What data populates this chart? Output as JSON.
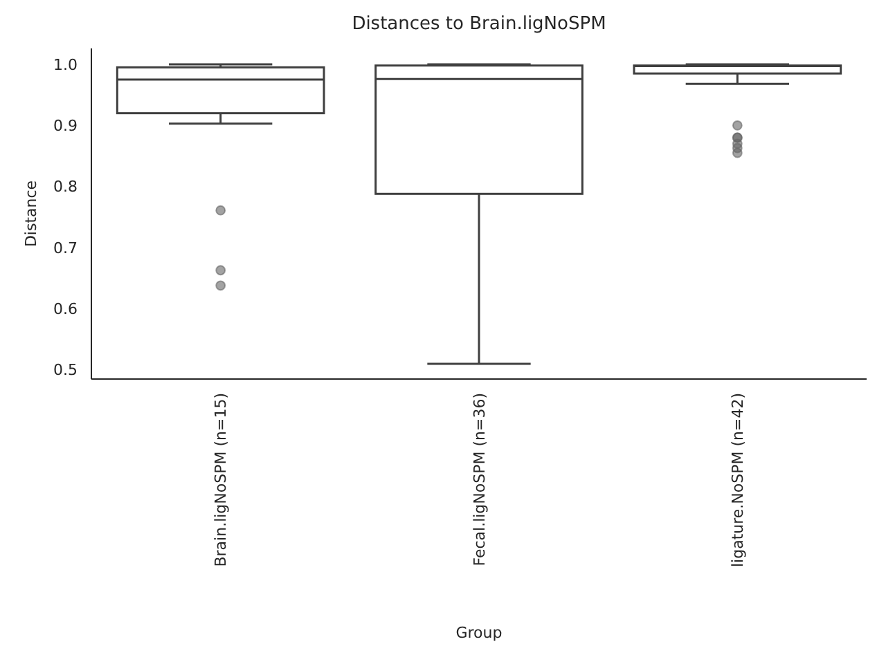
{
  "chart_data": {
    "type": "box",
    "title": "Distances to Brain.ligNoSPM",
    "xlabel": "Group",
    "ylabel": "Distance",
    "categories": [
      "Brain.ligNoSPM (n=15)",
      "Fecal.ligNoSPM (n=36)",
      "ligature.NoSPM (n=42)"
    ],
    "boxes": [
      {
        "low": 0.903,
        "q1": 0.92,
        "median": 0.975,
        "q3": 0.995,
        "high": 1.0,
        "outliers": [
          0.761,
          0.663,
          0.638
        ]
      },
      {
        "low": 0.51,
        "q1": 0.788,
        "median": 0.976,
        "q3": 0.998,
        "high": 1.0
      },
      {
        "low": 0.968,
        "q1": 0.985,
        "median": 0.997,
        "q3": 0.998,
        "high": 1.0,
        "outliers": [
          0.9,
          0.88,
          0.88,
          0.87,
          0.863,
          0.855
        ]
      }
    ],
    "color": "#ffffff",
    "ylim": [
      0.485,
      1.026
    ],
    "yticks": [
      {
        "value": 0.5,
        "label": "0.5"
      },
      {
        "value": 0.6,
        "label": "0.6"
      },
      {
        "value": 0.7,
        "label": "0.7"
      },
      {
        "value": 0.8,
        "label": "0.8"
      },
      {
        "value": 0.9,
        "label": "0.9"
      },
      {
        "value": 1.0,
        "label": "1.0"
      }
    ],
    "grid": false
  }
}
